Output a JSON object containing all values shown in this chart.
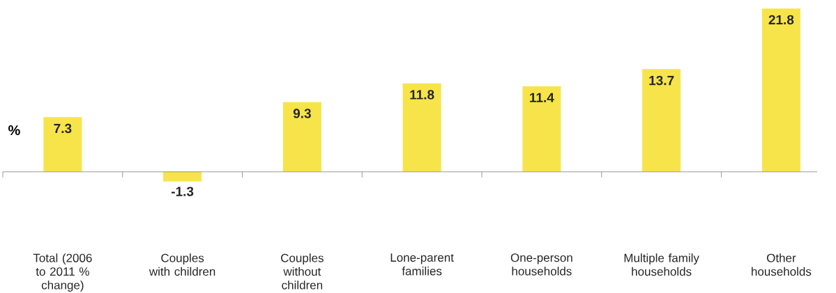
{
  "chart_data": {
    "type": "bar",
    "ylabel": "%",
    "categories": [
      "Total (2006 to 2011 % change)",
      "Couples with children",
      "Couples without children",
      "Lone-parent families",
      "One-person households",
      "Multiple family households",
      "Other households"
    ],
    "values": [
      7.3,
      -1.3,
      9.3,
      11.8,
      11.4,
      13.7,
      21.8
    ],
    "value_labels": [
      "7.3",
      "-1.3",
      "9.3",
      "11.8",
      "11.4",
      "13.7",
      "21.8"
    ],
    "color": "#f7e44a"
  }
}
